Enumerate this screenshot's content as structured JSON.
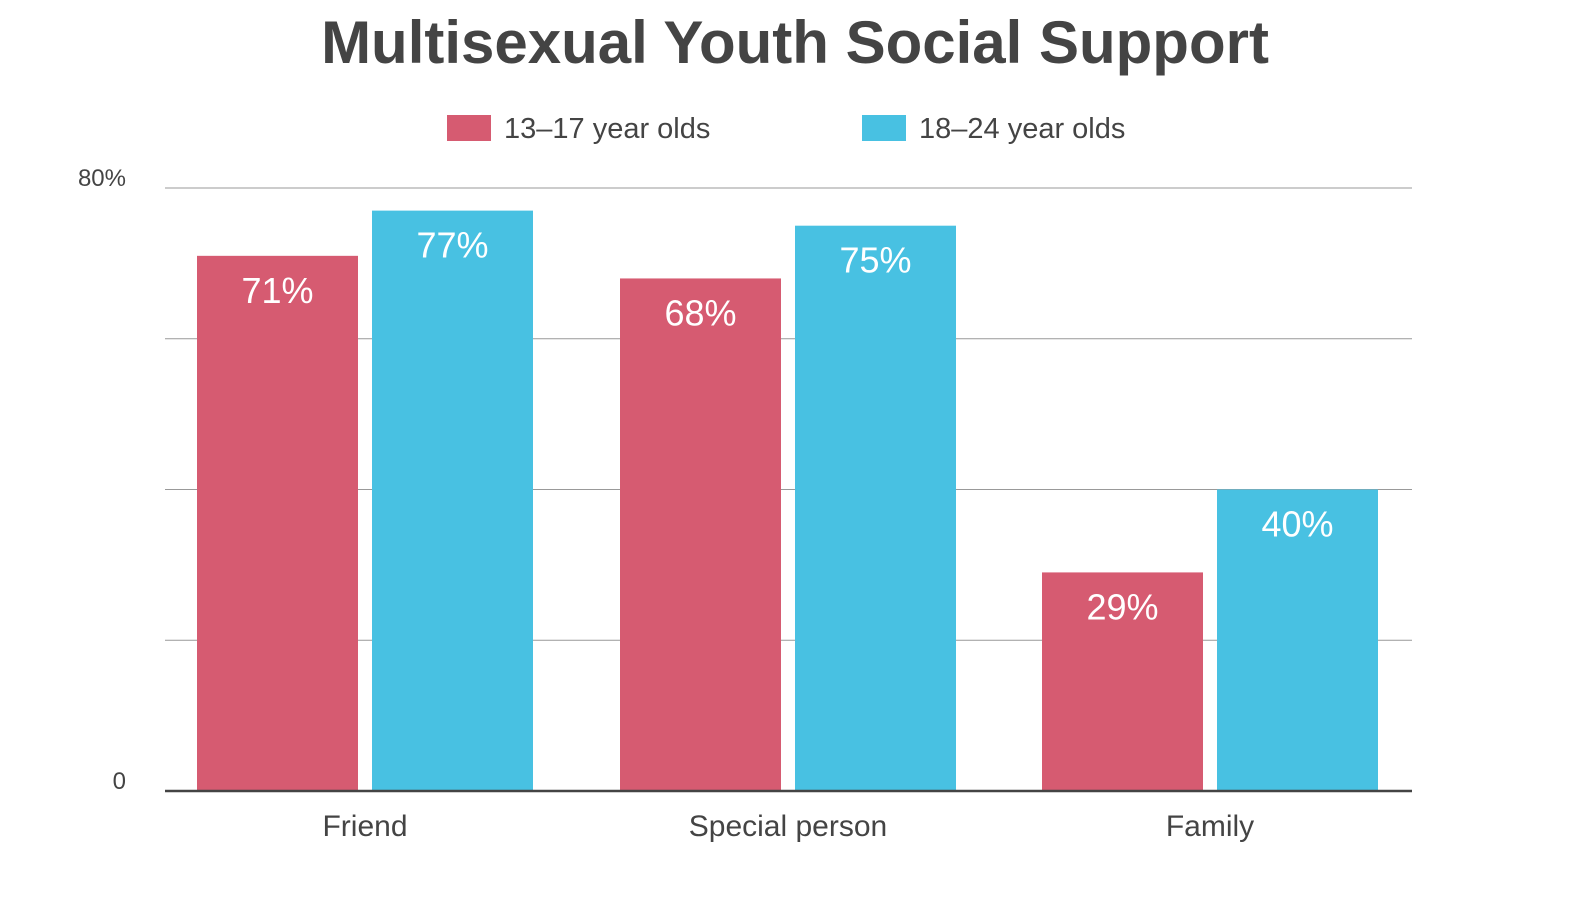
{
  "chart_data": {
    "type": "bar",
    "title": "Multisexual Youth Social Support",
    "categories": [
      "Friend",
      "Special person",
      "Family"
    ],
    "series": [
      {
        "name": "13–17 year olds",
        "values": [
          71,
          68,
          29
        ],
        "labels": [
          "71%",
          "68%",
          "29%"
        ],
        "color": "#d65b71"
      },
      {
        "name": "18–24 year olds",
        "values": [
          77,
          75,
          40
        ],
        "labels": [
          "77%",
          "75%",
          "40%"
        ],
        "color": "#48c1e2"
      }
    ],
    "ylim": [
      0,
      80
    ],
    "y_ticks": [
      {
        "value": 0,
        "label": "0"
      },
      {
        "value": 20,
        "label": ""
      },
      {
        "value": 40,
        "label": ""
      },
      {
        "value": 60,
        "label": ""
      },
      {
        "value": 80,
        "label": "80%"
      }
    ],
    "legend_position": "top-center",
    "grid": true,
    "grid_color": "#999999",
    "axis_color": "#444444",
    "text_color": "#444444"
  }
}
